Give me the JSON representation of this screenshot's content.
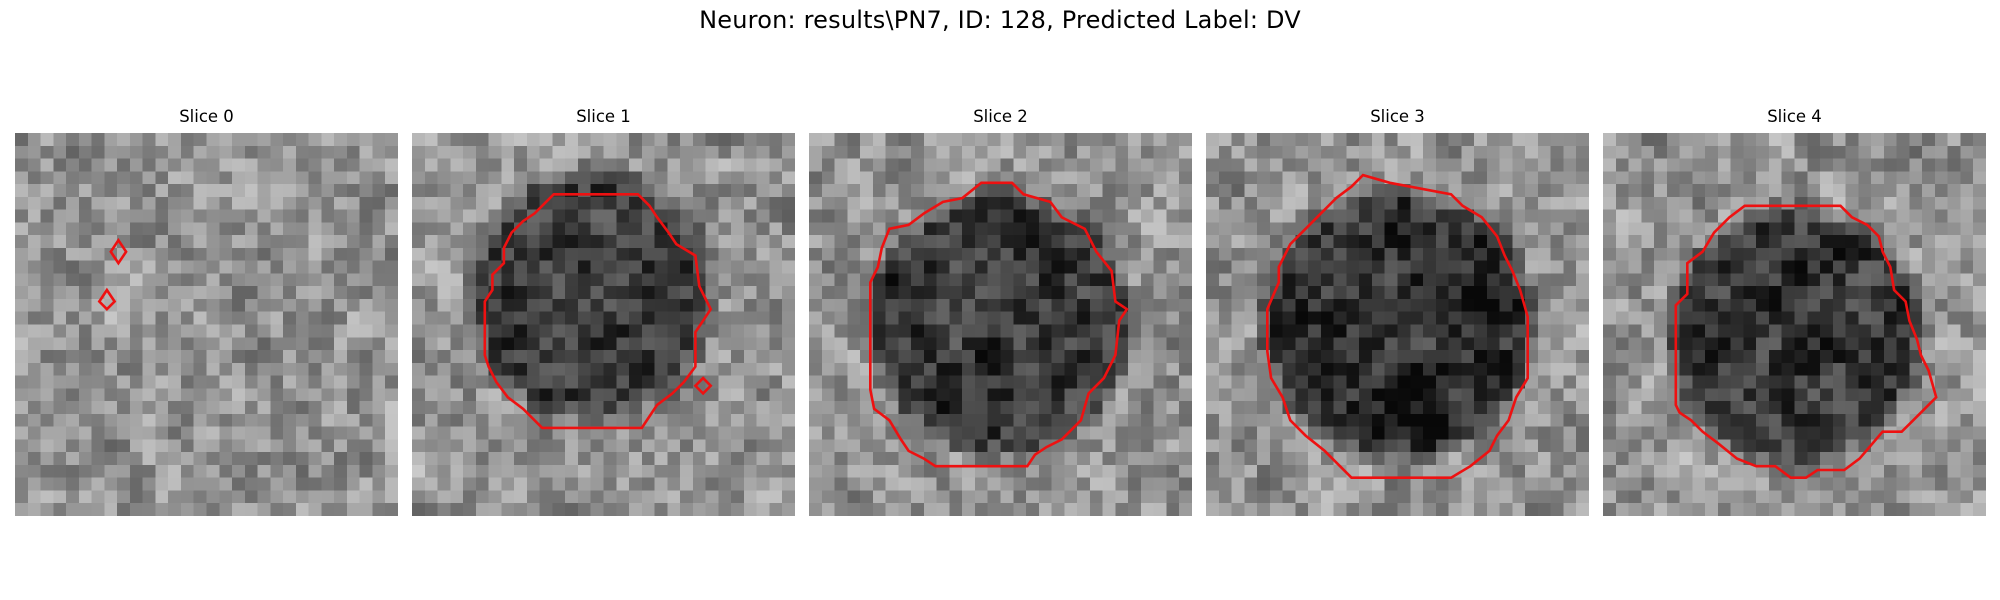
{
  "figure": {
    "title": "Neuron: results\\PN7, ID: 128, Predicted Label: DV",
    "contour_color": "#ee1111",
    "grid_size": 30
  },
  "panels": [
    {
      "title": "Slice 0",
      "seed": 11,
      "cell_center": [
        0.45,
        0.45
      ],
      "cell_radius": 0.0,
      "cell_darkness": 0.0,
      "contours": [
        [
          [
            0.27,
            0.28
          ],
          [
            0.29,
            0.31
          ],
          [
            0.27,
            0.34
          ],
          [
            0.25,
            0.31
          ]
        ],
        [
          [
            0.24,
            0.41
          ],
          [
            0.26,
            0.44
          ],
          [
            0.24,
            0.46
          ],
          [
            0.22,
            0.44
          ]
        ]
      ]
    },
    {
      "title": "Slice 1",
      "seed": 23,
      "cell_center": [
        0.47,
        0.42
      ],
      "cell_radius": 0.32,
      "cell_darkness": 0.35,
      "contours": [
        [
          [
            0.37,
            0.16
          ],
          [
            0.59,
            0.16
          ],
          [
            0.62,
            0.19
          ],
          [
            0.64,
            0.22
          ],
          [
            0.67,
            0.26
          ],
          [
            0.69,
            0.29
          ],
          [
            0.74,
            0.32
          ],
          [
            0.75,
            0.4
          ],
          [
            0.78,
            0.46
          ],
          [
            0.76,
            0.49
          ],
          [
            0.74,
            0.52
          ],
          [
            0.74,
            0.61
          ],
          [
            0.71,
            0.65
          ],
          [
            0.68,
            0.68
          ],
          [
            0.64,
            0.71
          ],
          [
            0.6,
            0.77
          ],
          [
            0.34,
            0.77
          ],
          [
            0.29,
            0.72
          ],
          [
            0.25,
            0.69
          ],
          [
            0.22,
            0.65
          ],
          [
            0.2,
            0.61
          ],
          [
            0.19,
            0.58
          ],
          [
            0.19,
            0.44
          ],
          [
            0.21,
            0.41
          ],
          [
            0.21,
            0.37
          ],
          [
            0.24,
            0.34
          ],
          [
            0.24,
            0.3
          ],
          [
            0.26,
            0.26
          ],
          [
            0.29,
            0.23
          ],
          [
            0.32,
            0.21
          ],
          [
            0.34,
            0.19
          ]
        ],
        [
          [
            0.76,
            0.64
          ],
          [
            0.78,
            0.66
          ],
          [
            0.76,
            0.68
          ],
          [
            0.74,
            0.66
          ]
        ]
      ]
    },
    {
      "title": "Slice 2",
      "seed": 37,
      "cell_center": [
        0.5,
        0.5
      ],
      "cell_radius": 0.34,
      "cell_darkness": 0.35,
      "contours": [
        [
          [
            0.35,
            0.18
          ],
          [
            0.4,
            0.17
          ],
          [
            0.45,
            0.13
          ],
          [
            0.53,
            0.13
          ],
          [
            0.56,
            0.16
          ],
          [
            0.63,
            0.18
          ],
          [
            0.66,
            0.22
          ],
          [
            0.72,
            0.25
          ],
          [
            0.75,
            0.31
          ],
          [
            0.79,
            0.36
          ],
          [
            0.8,
            0.44
          ],
          [
            0.83,
            0.46
          ],
          [
            0.81,
            0.49
          ],
          [
            0.8,
            0.58
          ],
          [
            0.77,
            0.64
          ],
          [
            0.73,
            0.68
          ],
          [
            0.71,
            0.75
          ],
          [
            0.66,
            0.8
          ],
          [
            0.62,
            0.82
          ],
          [
            0.59,
            0.84
          ],
          [
            0.57,
            0.87
          ],
          [
            0.33,
            0.87
          ],
          [
            0.3,
            0.85
          ],
          [
            0.26,
            0.83
          ],
          [
            0.24,
            0.8
          ],
          [
            0.21,
            0.75
          ],
          [
            0.17,
            0.72
          ],
          [
            0.16,
            0.67
          ],
          [
            0.16,
            0.39
          ],
          [
            0.18,
            0.35
          ],
          [
            0.19,
            0.3
          ],
          [
            0.21,
            0.25
          ],
          [
            0.26,
            0.24
          ],
          [
            0.3,
            0.21
          ]
        ]
      ]
    },
    {
      "title": "Slice 3",
      "seed": 51,
      "cell_center": [
        0.5,
        0.5
      ],
      "cell_radius": 0.35,
      "cell_darkness": 0.38,
      "contours": [
        [
          [
            0.34,
            0.17
          ],
          [
            0.38,
            0.14
          ],
          [
            0.41,
            0.11
          ],
          [
            0.48,
            0.13
          ],
          [
            0.64,
            0.16
          ],
          [
            0.67,
            0.19
          ],
          [
            0.72,
            0.22
          ],
          [
            0.76,
            0.27
          ],
          [
            0.78,
            0.32
          ],
          [
            0.8,
            0.36
          ],
          [
            0.82,
            0.41
          ],
          [
            0.84,
            0.48
          ],
          [
            0.84,
            0.64
          ],
          [
            0.81,
            0.69
          ],
          [
            0.79,
            0.75
          ],
          [
            0.76,
            0.79
          ],
          [
            0.74,
            0.83
          ],
          [
            0.69,
            0.87
          ],
          [
            0.64,
            0.9
          ],
          [
            0.38,
            0.9
          ],
          [
            0.35,
            0.87
          ],
          [
            0.31,
            0.83
          ],
          [
            0.26,
            0.79
          ],
          [
            0.22,
            0.75
          ],
          [
            0.2,
            0.69
          ],
          [
            0.17,
            0.64
          ],
          [
            0.16,
            0.57
          ],
          [
            0.16,
            0.46
          ],
          [
            0.19,
            0.39
          ],
          [
            0.19,
            0.35
          ],
          [
            0.22,
            0.29
          ],
          [
            0.26,
            0.25
          ],
          [
            0.3,
            0.21
          ]
        ]
      ]
    },
    {
      "title": "Slice 4",
      "seed": 67,
      "cell_center": [
        0.5,
        0.53
      ],
      "cell_radius": 0.33,
      "cell_darkness": 0.35,
      "contours": [
        [
          [
            0.37,
            0.19
          ],
          [
            0.62,
            0.19
          ],
          [
            0.65,
            0.22
          ],
          [
            0.69,
            0.24
          ],
          [
            0.72,
            0.27
          ],
          [
            0.73,
            0.31
          ],
          [
            0.75,
            0.35
          ],
          [
            0.76,
            0.41
          ],
          [
            0.79,
            0.44
          ],
          [
            0.8,
            0.49
          ],
          [
            0.82,
            0.54
          ],
          [
            0.83,
            0.58
          ],
          [
            0.85,
            0.62
          ],
          [
            0.87,
            0.69
          ],
          [
            0.84,
            0.72
          ],
          [
            0.81,
            0.75
          ],
          [
            0.78,
            0.78
          ],
          [
            0.73,
            0.78
          ],
          [
            0.67,
            0.85
          ],
          [
            0.63,
            0.88
          ],
          [
            0.56,
            0.88
          ],
          [
            0.53,
            0.9
          ],
          [
            0.49,
            0.9
          ],
          [
            0.45,
            0.87
          ],
          [
            0.4,
            0.87
          ],
          [
            0.35,
            0.85
          ],
          [
            0.3,
            0.81
          ],
          [
            0.26,
            0.78
          ],
          [
            0.23,
            0.75
          ],
          [
            0.2,
            0.73
          ],
          [
            0.19,
            0.71
          ],
          [
            0.19,
            0.45
          ],
          [
            0.22,
            0.42
          ],
          [
            0.22,
            0.34
          ],
          [
            0.26,
            0.31
          ],
          [
            0.29,
            0.26
          ],
          [
            0.33,
            0.22
          ]
        ]
      ]
    }
  ]
}
